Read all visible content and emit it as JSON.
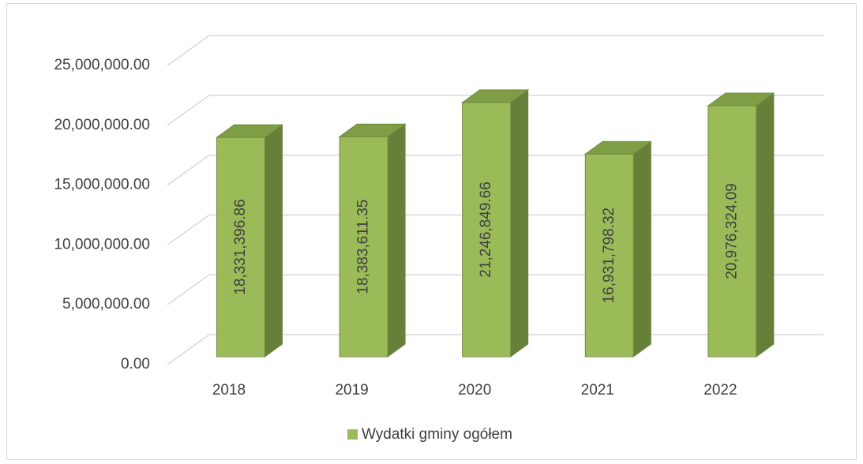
{
  "chart_data": {
    "type": "bar3d",
    "categories": [
      "2018",
      "2019",
      "2020",
      "2021",
      "2022"
    ],
    "series": [
      {
        "name": "Wydatki gminy ogółem",
        "color": "#9bbb59",
        "values": [
          18331396.86,
          18383611.35,
          21246849.66,
          16931798.32,
          20976324.09
        ],
        "value_labels": [
          "18,331,396.86",
          "18,383,611.35",
          "21,246,849.66",
          "16,931,798.32",
          "20,976,324.09"
        ]
      }
    ],
    "ylim": [
      0,
      25000000
    ],
    "yticks": [
      {
        "value": 0,
        "label": "0.00"
      },
      {
        "value": 5000000,
        "label": "5,000,000.00"
      },
      {
        "value": 10000000,
        "label": "10,000,000.00"
      },
      {
        "value": 15000000,
        "label": "15,000,000.00"
      },
      {
        "value": 20000000,
        "label": "20,000,000.00"
      },
      {
        "value": 25000000,
        "label": "25,000,000.00"
      }
    ],
    "grid": true,
    "legend": "bottom"
  }
}
